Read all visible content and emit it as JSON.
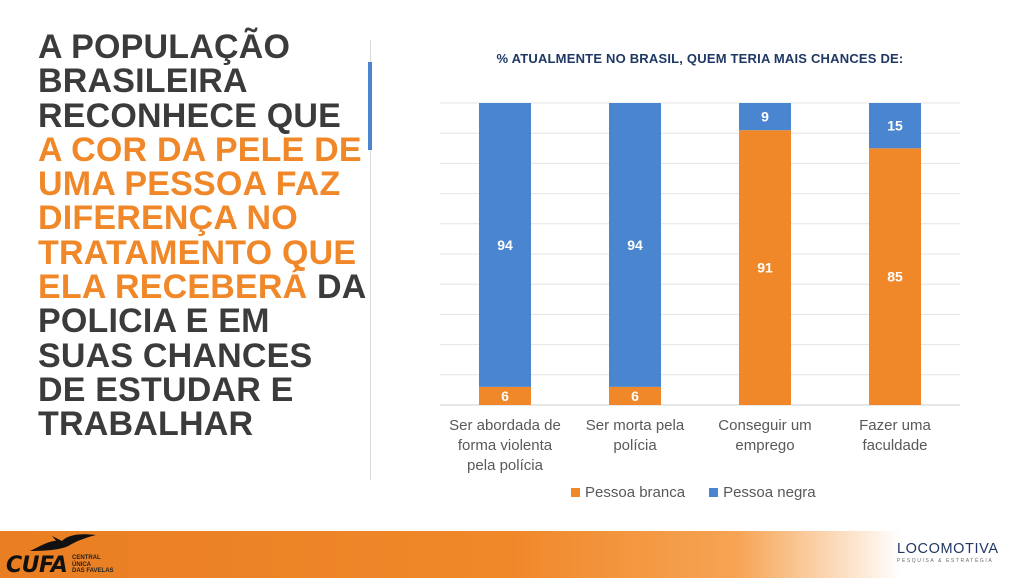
{
  "headline": {
    "part1": "A POPULAÇÃO BRASILEIRA RECONHECE QUE ",
    "highlight": "A COR DA PELE DE UMA PESSOA FAZ DIFERENÇA NO TRATAMENTO QUE ELA RECEBERÁ",
    "part2": " DA POLICIA E EM SUAS CHANCES DE ESTUDAR E TRABALHAR"
  },
  "colors": {
    "orange": "#f0882a",
    "blue": "#4a86cf",
    "headline_text": "#3b3b3b",
    "title_navy": "#1f3864"
  },
  "chart_data": {
    "type": "bar",
    "stacked": true,
    "title": "% ATUALMENTE NO BRASIL, QUEM TERIA MAIS CHANCES DE:",
    "categories": [
      [
        "Ser abordada de",
        "forma violenta",
        "pela polícia"
      ],
      [
        "Ser morta pela",
        "polícia"
      ],
      [
        "Conseguir um",
        "emprego"
      ],
      [
        "Fazer uma",
        "faculdade"
      ]
    ],
    "series": [
      {
        "name": "Pessoa branca",
        "color": "#f0882a",
        "values": [
          6,
          6,
          91,
          85
        ]
      },
      {
        "name": "Pessoa negra",
        "color": "#4a86cf",
        "values": [
          94,
          94,
          9,
          15
        ]
      }
    ],
    "ylim": [
      0,
      100
    ],
    "grid": true,
    "legend": "bottom"
  },
  "logos": {
    "cufa": {
      "name": "CUFA",
      "subtitle": [
        "CENTRAL",
        "ÚNICA",
        "DAS FAVELAS"
      ]
    },
    "locomotiva": {
      "name": "LOCOMOTIVA",
      "subtitle": "PESQUISA & ESTRATÉGIA"
    }
  }
}
